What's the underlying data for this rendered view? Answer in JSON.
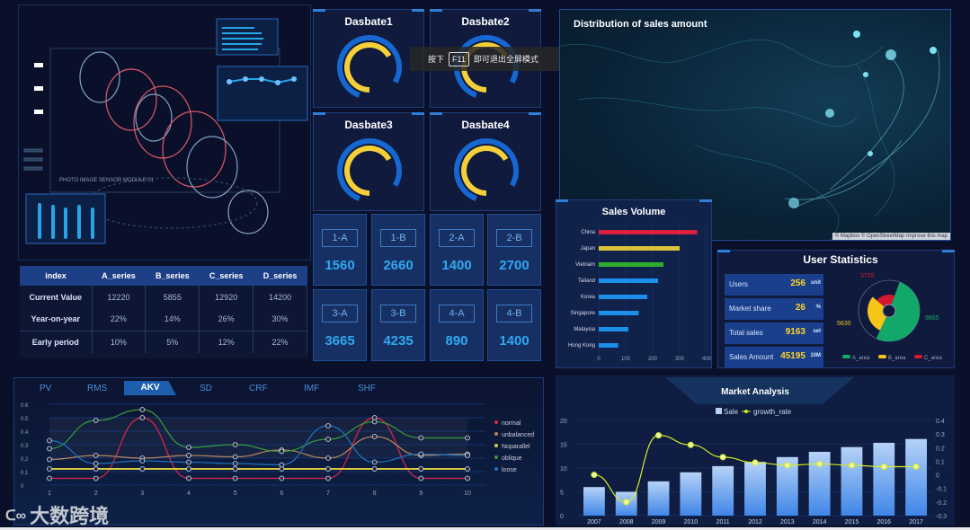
{
  "colors": {
    "accent": "#2f7fd8",
    "gauge_outer": "#1767d0",
    "gauge_inner": "#f5cf3a",
    "kpi_value": "#2fa8f0",
    "stat_value": "#ffd42a"
  },
  "overlay": {
    "prefix": "按下",
    "key": "F11",
    "suffix": "即可退出全屏模式"
  },
  "illustration": {
    "caption": "PHOTO IMAGE SENSOR MODULE 01"
  },
  "table": {
    "headers": [
      "index",
      "A_series",
      "B_series",
      "C_series",
      "D_series"
    ],
    "rows": [
      [
        "Current Value",
        "12220",
        "5855",
        "12920",
        "14200"
      ],
      [
        "Year-on-year",
        "22%",
        "14%",
        "26%",
        "30%"
      ],
      [
        "Early period",
        "10%",
        "5%",
        "12%",
        "22%"
      ]
    ]
  },
  "gauges": [
    {
      "title": "Dasbate1"
    },
    {
      "title": "Dasbate2"
    },
    {
      "title": "Dasbate3"
    },
    {
      "title": "Dasbate4"
    }
  ],
  "kpis": [
    {
      "label": "1-A",
      "value": "1560"
    },
    {
      "label": "1-B",
      "value": "2660"
    },
    {
      "label": "2-A",
      "value": "1400"
    },
    {
      "label": "2-B",
      "value": "2700"
    },
    {
      "label": "3-A",
      "value": "3665"
    },
    {
      "label": "3-B",
      "value": "4235"
    },
    {
      "label": "4-A",
      "value": "890"
    },
    {
      "label": "4-B",
      "value": "1400"
    }
  ],
  "map": {
    "title": "Distribution of sales amount",
    "attribution": "© Mapbox © OpenStreetMap Improve this map"
  },
  "user_stats": {
    "title": "User Statistics",
    "items": [
      {
        "name": "Users",
        "value": "256",
        "unit": "unit"
      },
      {
        "name": "Market share",
        "value": "26",
        "unit": "%"
      },
      {
        "name": "Total sales",
        "value": "9163",
        "unit": "set"
      },
      {
        "name": "Sales Amount",
        "value": "45195",
        "unit": "10M"
      }
    ]
  },
  "tabs": [
    "PV",
    "RMS",
    "AKV",
    "SD",
    "CRF",
    "IMF",
    "SHF"
  ],
  "active_tab": "AKV",
  "watermark": "大数跨境",
  "chart_data": [
    {
      "type": "bar",
      "title": "Sales Volume",
      "orientation": "horizontal",
      "categories": [
        "China",
        "Japan",
        "Vietnam",
        "Tailand",
        "Korea",
        "Singapore",
        "Malaysia",
        "Hong Kong"
      ],
      "values": [
        365,
        300,
        240,
        220,
        180,
        148,
        110,
        72
      ],
      "colors": [
        "#d9203f",
        "#d9c23a",
        "#2fae2f",
        "#1c8fea",
        "#1c8fea",
        "#1c8fea",
        "#1c8fea",
        "#1c8fea"
      ],
      "xlim": [
        0,
        400
      ],
      "xticks": [
        "0",
        "100",
        "200",
        "300",
        "400"
      ]
    },
    {
      "type": "pie",
      "donut": true,
      "series": [
        {
          "name": "A_area",
          "value": 9865,
          "color": "#12a86a"
        },
        {
          "name": "B_area",
          "value": 5630,
          "color": "#f5c518"
        },
        {
          "name": "C_area",
          "value": 3725,
          "color": "#d4182f"
        }
      ],
      "labels": [
        "9865",
        "5630",
        "3725"
      ],
      "legend": "bottom"
    },
    {
      "type": "line",
      "x": [
        1,
        2,
        3,
        4,
        5,
        6,
        7,
        8,
        9,
        10
      ],
      "ylim": [
        0,
        0.6
      ],
      "yticks": [
        "0",
        "0.1",
        "0.2",
        "0.3",
        "0.4",
        "0.5",
        "0.6"
      ],
      "xticks": [
        "1",
        "2",
        "3",
        "4",
        "5",
        "6",
        "7",
        "8",
        "9",
        "10"
      ],
      "legend": "right",
      "series": [
        {
          "name": "normal",
          "color": "#e0264a",
          "values": [
            0.05,
            0.05,
            0.5,
            0.05,
            0.05,
            0.05,
            0.05,
            0.5,
            0.05,
            0.05
          ]
        },
        {
          "name": "unbalanced",
          "color": "#b5865a",
          "values": [
            0.19,
            0.22,
            0.2,
            0.22,
            0.21,
            0.26,
            0.2,
            0.36,
            0.22,
            0.23
          ]
        },
        {
          "name": "Noparallel",
          "color": "#d9c83a",
          "values": [
            0.12,
            0.12,
            0.12,
            0.12,
            0.12,
            0.12,
            0.12,
            0.12,
            0.12,
            0.12
          ]
        },
        {
          "name": "oblique",
          "color": "#3a9a3a",
          "values": [
            0.27,
            0.48,
            0.56,
            0.28,
            0.3,
            0.25,
            0.34,
            0.47,
            0.35,
            0.35
          ]
        },
        {
          "name": "loose",
          "color": "#1e73c0",
          "values": [
            0.33,
            0.16,
            0.18,
            0.17,
            0.16,
            0.15,
            0.44,
            0.17,
            0.23,
            0.22
          ]
        }
      ]
    },
    {
      "type": "bar+line",
      "title": "Market Analysis",
      "categories": [
        "2007",
        "2008",
        "2009",
        "2010",
        "2011",
        "2012",
        "2013",
        "2014",
        "2015",
        "2016",
        "2017"
      ],
      "series": [
        {
          "name": "Sale",
          "type": "bar",
          "axis": "left",
          "values": [
            6,
            5,
            7.2,
            9.1,
            10.4,
            11.3,
            12.3,
            13.4,
            14.4,
            15.3,
            16.1
          ]
        },
        {
          "name": "growth_rate",
          "type": "line",
          "axis": "right",
          "values": [
            0,
            -0.2,
            0.29,
            0.22,
            0.13,
            0.09,
            0.07,
            0.08,
            0.07,
            0.06,
            0.06
          ]
        }
      ],
      "ylim_left": [
        0,
        20
      ],
      "yticks_left": [
        "0",
        "5",
        "10",
        "15",
        "20"
      ],
      "ylim_right": [
        -0.3,
        0.4
      ],
      "yticks_right": [
        "-0.3",
        "-0.2",
        "-0.1",
        "0",
        "0.1",
        "0.2",
        "0.3",
        "0.4"
      ],
      "legend": "top"
    }
  ]
}
